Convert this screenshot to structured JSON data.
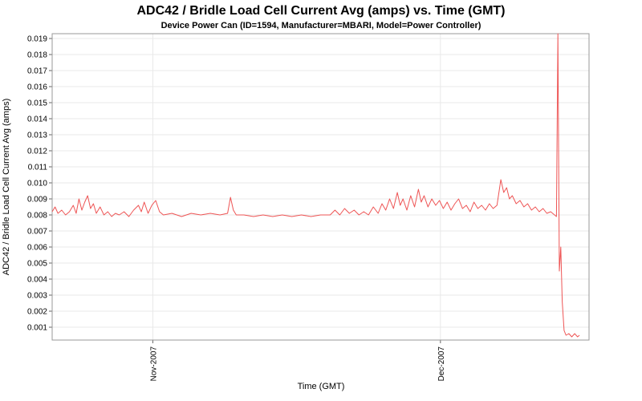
{
  "title": "ADC42 / Bridle Load Cell Current Avg (amps) vs. Time (GMT)",
  "subtitle": "Device Power Can (ID=1594, Manufacturer=MBARI, Model=Power Controller)",
  "colors": {
    "line": "#ee5555",
    "grid": "#e8e8e8",
    "plot_border": "#999999",
    "tick": "#666666",
    "text": "#000000",
    "plot_background": "#ffffff"
  },
  "chart_data": {
    "type": "line",
    "title": "ADC42 / Bridle Load Cell Current Avg (amps) vs. Time (GMT)",
    "subtitle": "Device Power Can (ID=1594, Manufacturer=MBARI, Model=Power Controller)",
    "xlabel": "Time (GMT)",
    "ylabel": "ADC42 / Bridle Load Cell Current Avg (amps)",
    "grid": true,
    "legend": "none",
    "x_range": [
      0,
      56
    ],
    "y_range": [
      0.0002,
      0.0193
    ],
    "y_ticks": {
      "start": 0.001,
      "end": 0.019,
      "step": 0.001,
      "decimals": 3
    },
    "x_ticks": [
      {
        "pos": 10.5,
        "label": "Nov-2007"
      },
      {
        "pos": 40.5,
        "label": "Dec-2007"
      }
    ],
    "series": [
      {
        "name": "ADC42 / Bridle Load Cell Current Avg (amps)",
        "color": "#ee5555",
        "points": [
          [
            0,
            0.0082
          ],
          [
            0.3,
            0.0085
          ],
          [
            0.6,
            0.0081
          ],
          [
            1,
            0.0083
          ],
          [
            1.4,
            0.008
          ],
          [
            1.8,
            0.0082
          ],
          [
            2.2,
            0.0086
          ],
          [
            2.5,
            0.0081
          ],
          [
            2.8,
            0.009
          ],
          [
            3.1,
            0.0083
          ],
          [
            3.4,
            0.0088
          ],
          [
            3.7,
            0.0092
          ],
          [
            4,
            0.0084
          ],
          [
            4.3,
            0.0087
          ],
          [
            4.6,
            0.0081
          ],
          [
            5,
            0.0085
          ],
          [
            5.4,
            0.008
          ],
          [
            5.8,
            0.0082
          ],
          [
            6.2,
            0.0079
          ],
          [
            6.6,
            0.0081
          ],
          [
            7,
            0.008
          ],
          [
            7.5,
            0.0082
          ],
          [
            8,
            0.0079
          ],
          [
            8.5,
            0.0083
          ],
          [
            9,
            0.0086
          ],
          [
            9.3,
            0.0082
          ],
          [
            9.6,
            0.0088
          ],
          [
            10,
            0.0081
          ],
          [
            10.4,
            0.0086
          ],
          [
            10.8,
            0.0089
          ],
          [
            11.2,
            0.0082
          ],
          [
            11.6,
            0.008
          ],
          [
            12.5,
            0.0081
          ],
          [
            13.5,
            0.0079
          ],
          [
            14.5,
            0.0081
          ],
          [
            15.5,
            0.008
          ],
          [
            16.5,
            0.0081
          ],
          [
            17.5,
            0.008
          ],
          [
            18.3,
            0.0081
          ],
          [
            18.6,
            0.0091
          ],
          [
            18.9,
            0.0083
          ],
          [
            19.2,
            0.008
          ],
          [
            20,
            0.008
          ],
          [
            21,
            0.0079
          ],
          [
            22,
            0.008
          ],
          [
            23,
            0.0079
          ],
          [
            24,
            0.008
          ],
          [
            25,
            0.0079
          ],
          [
            26,
            0.008
          ],
          [
            27,
            0.0079
          ],
          [
            28,
            0.008
          ],
          [
            29,
            0.008
          ],
          [
            29.5,
            0.0083
          ],
          [
            30,
            0.008
          ],
          [
            30.5,
            0.0084
          ],
          [
            31,
            0.0081
          ],
          [
            31.5,
            0.0083
          ],
          [
            32,
            0.008
          ],
          [
            32.5,
            0.0082
          ],
          [
            33,
            0.008
          ],
          [
            33.5,
            0.0085
          ],
          [
            34,
            0.0081
          ],
          [
            34.4,
            0.0087
          ],
          [
            34.8,
            0.0083
          ],
          [
            35.2,
            0.009
          ],
          [
            35.6,
            0.0084
          ],
          [
            36,
            0.0094
          ],
          [
            36.3,
            0.0086
          ],
          [
            36.6,
            0.009
          ],
          [
            37,
            0.0083
          ],
          [
            37.4,
            0.0092
          ],
          [
            37.8,
            0.0085
          ],
          [
            38.2,
            0.0096
          ],
          [
            38.5,
            0.0088
          ],
          [
            38.8,
            0.0092
          ],
          [
            39.2,
            0.0085
          ],
          [
            39.6,
            0.009
          ],
          [
            40,
            0.0086
          ],
          [
            40.4,
            0.0089
          ],
          [
            40.8,
            0.0084
          ],
          [
            41.2,
            0.0088
          ],
          [
            41.6,
            0.0083
          ],
          [
            42,
            0.0087
          ],
          [
            42.4,
            0.009
          ],
          [
            42.8,
            0.0084
          ],
          [
            43.2,
            0.0086
          ],
          [
            43.6,
            0.0082
          ],
          [
            44,
            0.0088
          ],
          [
            44.4,
            0.0084
          ],
          [
            44.8,
            0.0086
          ],
          [
            45.2,
            0.0083
          ],
          [
            45.6,
            0.0087
          ],
          [
            46,
            0.0084
          ],
          [
            46.4,
            0.0086
          ],
          [
            46.8,
            0.0102
          ],
          [
            47.1,
            0.0094
          ],
          [
            47.4,
            0.0097
          ],
          [
            47.7,
            0.009
          ],
          [
            48,
            0.0092
          ],
          [
            48.4,
            0.0087
          ],
          [
            48.8,
            0.0089
          ],
          [
            49.2,
            0.0085
          ],
          [
            49.6,
            0.0087
          ],
          [
            50,
            0.0083
          ],
          [
            50.4,
            0.0085
          ],
          [
            50.8,
            0.0082
          ],
          [
            51.2,
            0.0084
          ],
          [
            51.6,
            0.0081
          ],
          [
            52,
            0.0082
          ],
          [
            52.4,
            0.008
          ],
          [
            52.6,
            0.0079
          ],
          [
            52.75,
            0.021
          ],
          [
            52.9,
            0.0045
          ],
          [
            53.05,
            0.006
          ],
          [
            53.2,
            0.0026
          ],
          [
            53.4,
            0.0008
          ],
          [
            53.6,
            0.0005
          ],
          [
            53.9,
            0.0006
          ],
          [
            54.2,
            0.0004
          ],
          [
            54.5,
            0.0006
          ],
          [
            54.8,
            0.0004
          ],
          [
            55,
            0.0005
          ]
        ]
      }
    ]
  }
}
